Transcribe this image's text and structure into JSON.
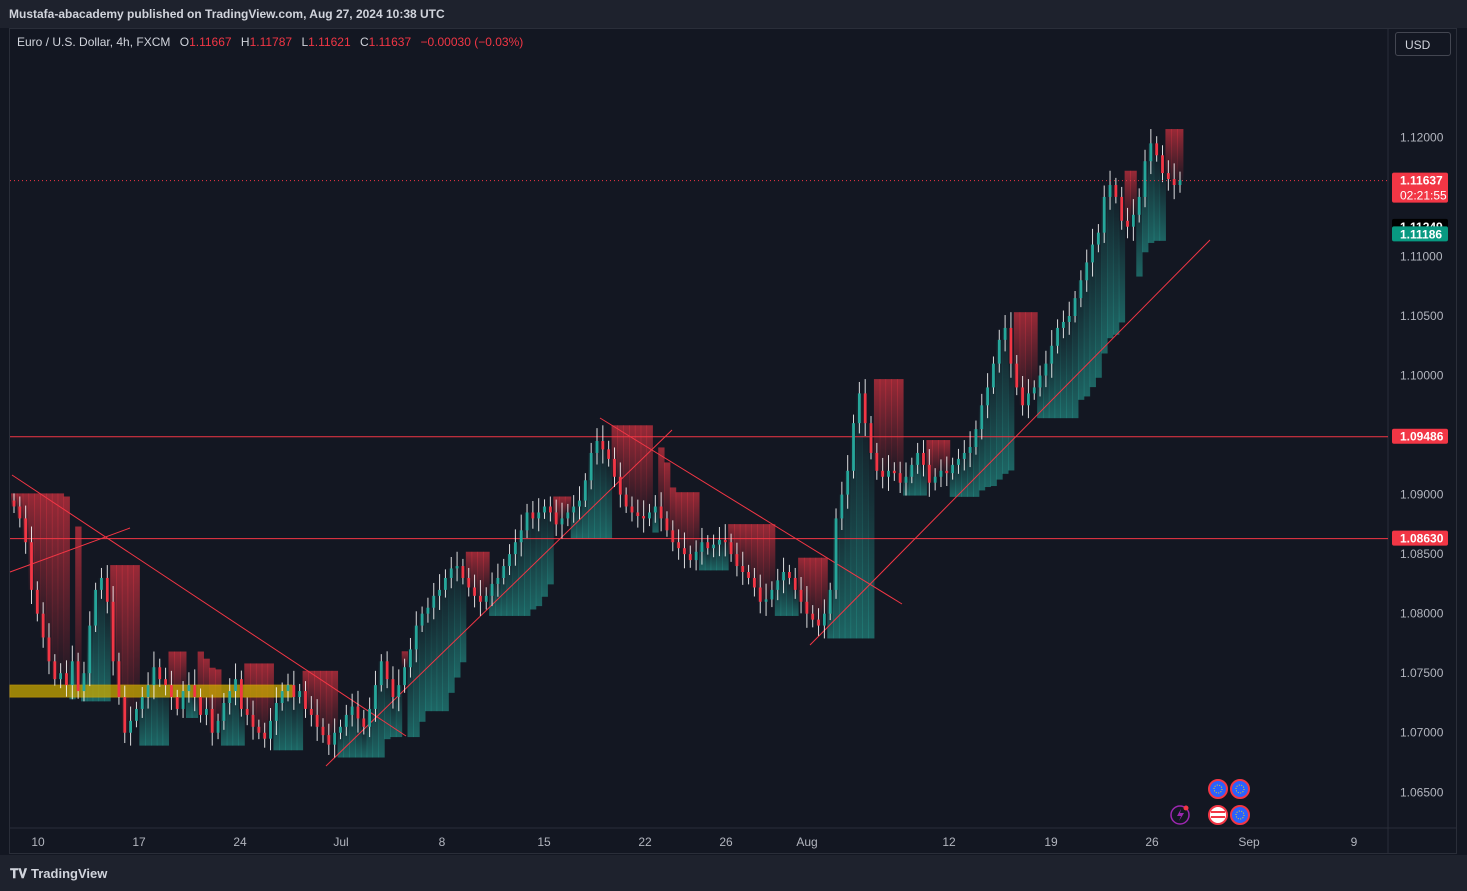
{
  "header": {
    "publisher": "Mustafa-abacademy published on TradingView.com, Aug 27, 2024 10:38 UTC"
  },
  "legend": {
    "symbol": "Euro / U.S. Dollar, 4h, FXCM",
    "open_label": "O",
    "open": "1.11667",
    "high_label": "H",
    "high": "1.11787",
    "low_label": "L",
    "low": "1.11621",
    "close_label": "C",
    "close": "1.11637",
    "change": "−0.00030 (−0.03%)"
  },
  "currency": "USD",
  "footer": {
    "brand": "TradingView"
  },
  "colors": {
    "background": "#131722",
    "up": "#26a69a",
    "down": "#f23645",
    "grid_border": "#2a2e39",
    "level_line": "#f23645",
    "zone": "#c8a800"
  },
  "chart_data": {
    "type": "candlestick",
    "price_axis": {
      "ticks": [
        "1.12000",
        "1.11000",
        "1.10500",
        "1.10000",
        "1.09000",
        "1.08500",
        "1.08000",
        "1.07500",
        "1.07000",
        "1.06500"
      ],
      "tick_values": [
        1.12,
        1.11,
        1.105,
        1.1,
        1.09,
        1.085,
        1.08,
        1.075,
        1.07,
        1.065
      ],
      "ylim": [
        1.062,
        1.1265
      ]
    },
    "time_axis": {
      "labels": [
        "10",
        "17",
        "24",
        "Jul",
        "8",
        "15",
        "22",
        "26",
        "Aug",
        "12",
        "19",
        "26",
        "Sep",
        "9"
      ]
    },
    "price_tags": [
      {
        "value": 1.11637,
        "text": "1.11637",
        "sub": "02:21:55",
        "kind": "current"
      },
      {
        "value": 1.11249,
        "text": "1.11249",
        "kind": "black"
      },
      {
        "value": 1.11186,
        "text": "1.11186",
        "kind": "green"
      },
      {
        "value": 1.09486,
        "text": "1.09486",
        "kind": "red"
      },
      {
        "value": 1.0863,
        "text": "1.08630",
        "kind": "red"
      }
    ],
    "horizontal_levels": [
      1.09486,
      1.0863
    ],
    "zone": {
      "from": 1.0729,
      "to": 1.0737,
      "x_start": 0,
      "x_end": 56
    },
    "current_price": 1.11637,
    "close_series": [
      1.089,
      1.088,
      1.086,
      1.082,
      1.08,
      1.078,
      1.076,
      1.0745,
      1.075,
      1.074,
      1.076,
      1.0735,
      1.075,
      1.079,
      1.082,
      1.083,
      1.081,
      1.076,
      1.073,
      1.07,
      1.071,
      1.072,
      1.073,
      1.074,
      1.0755,
      1.0745,
      1.074,
      1.073,
      1.072,
      1.0735,
      1.074,
      1.073,
      1.0715,
      1.072,
      1.07,
      1.071,
      1.0725,
      1.0735,
      1.0745,
      1.072,
      1.0715,
      1.0705,
      1.07,
      1.0695,
      1.071,
      1.0725,
      1.0735,
      1.074,
      1.073,
      1.0735,
      1.072,
      1.0715,
      1.0705,
      1.0698,
      1.069,
      1.07,
      1.0705,
      1.0715,
      1.0722,
      1.0712,
      1.0705,
      1.072,
      1.074,
      1.076,
      1.0745,
      1.073,
      1.074,
      1.0755,
      1.077,
      1.079,
      1.08,
      1.0805,
      1.0815,
      1.082,
      1.083,
      1.0838,
      1.084,
      1.083,
      1.0822,
      1.0815,
      1.081,
      1.0815,
      1.0825,
      1.083,
      1.084,
      1.085,
      1.086,
      1.087,
      1.0885,
      1.088,
      1.0885,
      1.089,
      1.0885,
      1.0875,
      1.088,
      1.0885,
      1.089,
      1.0895,
      1.0912,
      1.0935,
      1.0945,
      1.0938,
      1.093,
      1.0915,
      1.09,
      1.089,
      1.0885,
      1.0882,
      1.088,
      1.0885,
      1.089,
      1.088,
      1.087,
      1.086,
      1.0855,
      1.085,
      1.0845,
      1.0852,
      1.086,
      1.0855,
      1.0858,
      1.0862,
      1.086,
      1.085,
      1.084,
      1.0835,
      1.083,
      1.0822,
      1.081,
      1.0812,
      1.082,
      1.0828,
      1.0835,
      1.083,
      1.082,
      1.081,
      1.08,
      1.0795,
      1.079,
      1.08,
      1.082,
      1.088,
      1.09,
      1.092,
      1.096,
      1.0985,
      1.096,
      1.0935,
      1.092,
      1.0915,
      1.092,
      1.0918,
      1.091,
      1.0915,
      1.0925,
      1.0935,
      1.0925,
      1.091,
      1.0915,
      1.092,
      1.0918,
      1.0925,
      1.093,
      1.0935,
      1.094,
      1.0955,
      1.0975,
      1.099,
      1.101,
      1.103,
      1.104,
      1.101,
      1.099,
      1.0975,
      1.0985,
      1.099,
      1.1,
      1.101,
      1.1025,
      1.104,
      1.1045,
      1.105,
      1.1065,
      1.108,
      1.1095,
      1.111,
      1.112,
      1.115,
      1.116,
      1.115,
      1.113,
      1.1125,
      1.1135,
      1.115,
      1.118,
      1.1195,
      1.1185,
      1.117,
      1.1165,
      1.116,
      1.1164
    ]
  }
}
